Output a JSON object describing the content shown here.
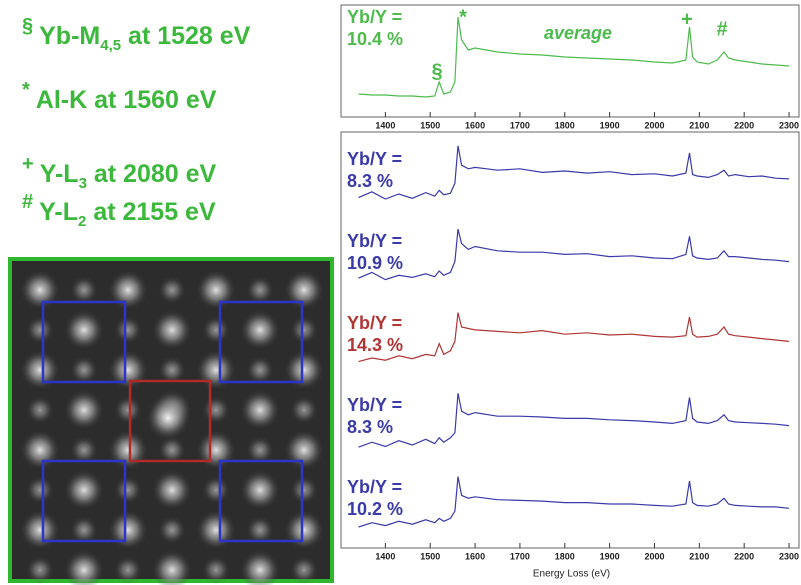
{
  "legend_lines": [
    {
      "symbol": "§",
      "text": "Yb-M",
      "sub": "4,5",
      "rest": " at 1528 eV"
    },
    {
      "symbol": "*",
      "text": "Al-K at 1560 eV"
    },
    {
      "symbol": "+",
      "text": "Y-L",
      "sub": "3",
      "rest": " at 2080 eV"
    },
    {
      "symbol": "#",
      "text": "Y-L",
      "sub": "2",
      "rest": " at 2155 eV"
    }
  ],
  "chart_data": [
    {
      "type": "line",
      "ratio_label": "Yb/Y =",
      "ratio": "10.4 %",
      "annotations": [
        "*",
        "average",
        "+",
        "#",
        "§"
      ],
      "x": [
        1340,
        1370,
        1400,
        1430,
        1460,
        1490,
        1510,
        1520,
        1530,
        1545,
        1555,
        1562,
        1570,
        1585,
        1600,
        1650,
        1700,
        1750,
        1800,
        1850,
        1900,
        1950,
        2000,
        2040,
        2070,
        2078,
        2085,
        2095,
        2120,
        2140,
        2155,
        2165,
        2180,
        2210,
        2240,
        2270,
        2300
      ],
      "series": [
        {
          "color": "#4cbb4c",
          "values": [
            18,
            17,
            17,
            16,
            16,
            15,
            16,
            30,
            18,
            20,
            30,
            95,
            72,
            62,
            64,
            60,
            58,
            57,
            55,
            54,
            53,
            52,
            50,
            49,
            52,
            85,
            55,
            50,
            48,
            52,
            60,
            54,
            52,
            50,
            48,
            47,
            46
          ]
        }
      ],
      "xlim": [
        1310,
        2320
      ],
      "ylim": [
        0,
        100
      ],
      "xticks": [
        1400,
        1500,
        1600,
        1700,
        1800,
        1900,
        2000,
        2100,
        2200,
        2300
      ]
    },
    {
      "type": "line",
      "ratio_label": "Yb/Y =",
      "ratio": "8.3 %",
      "x": [
        1340,
        1370,
        1400,
        1430,
        1460,
        1490,
        1510,
        1520,
        1530,
        1545,
        1555,
        1562,
        1570,
        1585,
        1600,
        1650,
        1700,
        1750,
        1800,
        1850,
        1900,
        1950,
        2000,
        2040,
        2070,
        2078,
        2085,
        2095,
        2120,
        2140,
        2155,
        2165,
        2180,
        2210,
        2240,
        2270,
        2300
      ],
      "series": [
        {
          "color": "#3a3aa8",
          "values": [
            20,
            28,
            18,
            25,
            19,
            27,
            22,
            30,
            24,
            26,
            40,
            92,
            65,
            60,
            62,
            58,
            60,
            55,
            57,
            54,
            56,
            52,
            53,
            50,
            54,
            82,
            52,
            50,
            48,
            52,
            58,
            50,
            52,
            49,
            50,
            47,
            46
          ]
        }
      ],
      "xlim": [
        1310,
        2320
      ],
      "ylim": [
        0,
        100
      ]
    },
    {
      "type": "line",
      "ratio_label": "Yb/Y =",
      "ratio": "10.9 %",
      "x": [
        1340,
        1370,
        1400,
        1430,
        1460,
        1490,
        1510,
        1520,
        1530,
        1545,
        1555,
        1562,
        1570,
        1585,
        1600,
        1650,
        1700,
        1750,
        1800,
        1850,
        1900,
        1950,
        2000,
        2040,
        2070,
        2078,
        2085,
        2095,
        2120,
        2140,
        2155,
        2165,
        2180,
        2210,
        2240,
        2270,
        2300
      ],
      "series": [
        {
          "color": "#3a3aa8",
          "values": [
            22,
            30,
            20,
            26,
            23,
            28,
            24,
            32,
            26,
            30,
            45,
            90,
            70,
            62,
            66,
            60,
            58,
            58,
            55,
            56,
            52,
            53,
            50,
            49,
            55,
            80,
            53,
            50,
            48,
            50,
            60,
            52,
            52,
            50,
            48,
            47,
            45
          ]
        }
      ],
      "xlim": [
        1310,
        2320
      ],
      "ylim": [
        0,
        100
      ]
    },
    {
      "type": "line",
      "ratio_label": "Yb/Y =",
      "ratio": "14.3 %",
      "x": [
        1340,
        1370,
        1400,
        1430,
        1460,
        1490,
        1510,
        1520,
        1530,
        1545,
        1555,
        1562,
        1570,
        1585,
        1600,
        1650,
        1700,
        1750,
        1800,
        1850,
        1900,
        1950,
        2000,
        2040,
        2070,
        2078,
        2085,
        2095,
        2120,
        2140,
        2155,
        2165,
        2180,
        2210,
        2240,
        2270,
        2300
      ],
      "series": [
        {
          "color": "#b03535",
          "values": [
            20,
            25,
            22,
            28,
            24,
            30,
            28,
            45,
            30,
            35,
            48,
            88,
            68,
            66,
            64,
            62,
            60,
            63,
            58,
            60,
            57,
            58,
            55,
            54,
            56,
            82,
            58,
            54,
            55,
            58,
            68,
            58,
            56,
            54,
            52,
            50,
            48
          ]
        }
      ],
      "xlim": [
        1310,
        2320
      ],
      "ylim": [
        0,
        100
      ]
    },
    {
      "type": "line",
      "ratio_label": "Yb/Y =",
      "ratio": "8.3 %",
      "x": [
        1340,
        1370,
        1400,
        1430,
        1460,
        1490,
        1510,
        1520,
        1530,
        1545,
        1555,
        1562,
        1570,
        1585,
        1600,
        1650,
        1700,
        1750,
        1800,
        1850,
        1900,
        1950,
        2000,
        2040,
        2070,
        2078,
        2085,
        2095,
        2120,
        2140,
        2155,
        2165,
        2180,
        2210,
        2240,
        2270,
        2300
      ],
      "series": [
        {
          "color": "#3a3aa8",
          "values": [
            15,
            22,
            16,
            24,
            18,
            26,
            20,
            28,
            22,
            28,
            35,
            90,
            65,
            60,
            63,
            58,
            58,
            57,
            55,
            55,
            53,
            52,
            50,
            48,
            52,
            84,
            55,
            50,
            48,
            52,
            60,
            52,
            50,
            49,
            48,
            47,
            45
          ]
        }
      ],
      "xlim": [
        1310,
        2320
      ],
      "ylim": [
        0,
        100
      ]
    },
    {
      "type": "line",
      "ratio_label": "Yb/Y =",
      "ratio": "10.2 %",
      "xlabel": "Energy Loss (eV)",
      "x": [
        1340,
        1370,
        1400,
        1430,
        1460,
        1490,
        1510,
        1520,
        1530,
        1545,
        1555,
        1562,
        1570,
        1585,
        1600,
        1650,
        1700,
        1750,
        1800,
        1850,
        1900,
        1950,
        2000,
        2040,
        2070,
        2078,
        2085,
        2095,
        2120,
        2140,
        2155,
        2165,
        2180,
        2210,
        2240,
        2270,
        2300
      ],
      "series": [
        {
          "color": "#3a3aa8",
          "values": [
            18,
            24,
            20,
            26,
            22,
            28,
            24,
            30,
            26,
            30,
            40,
            88,
            62,
            58,
            60,
            56,
            55,
            54,
            52,
            52,
            50,
            50,
            48,
            47,
            50,
            82,
            52,
            48,
            47,
            50,
            58,
            50,
            48,
            47,
            46,
            46,
            44
          ]
        }
      ],
      "xlim": [
        1310,
        2320
      ],
      "ylim": [
        0,
        100
      ],
      "xticks": [
        1400,
        1500,
        1600,
        1700,
        1800,
        1900,
        2000,
        2100,
        2200,
        2300
      ]
    }
  ]
}
